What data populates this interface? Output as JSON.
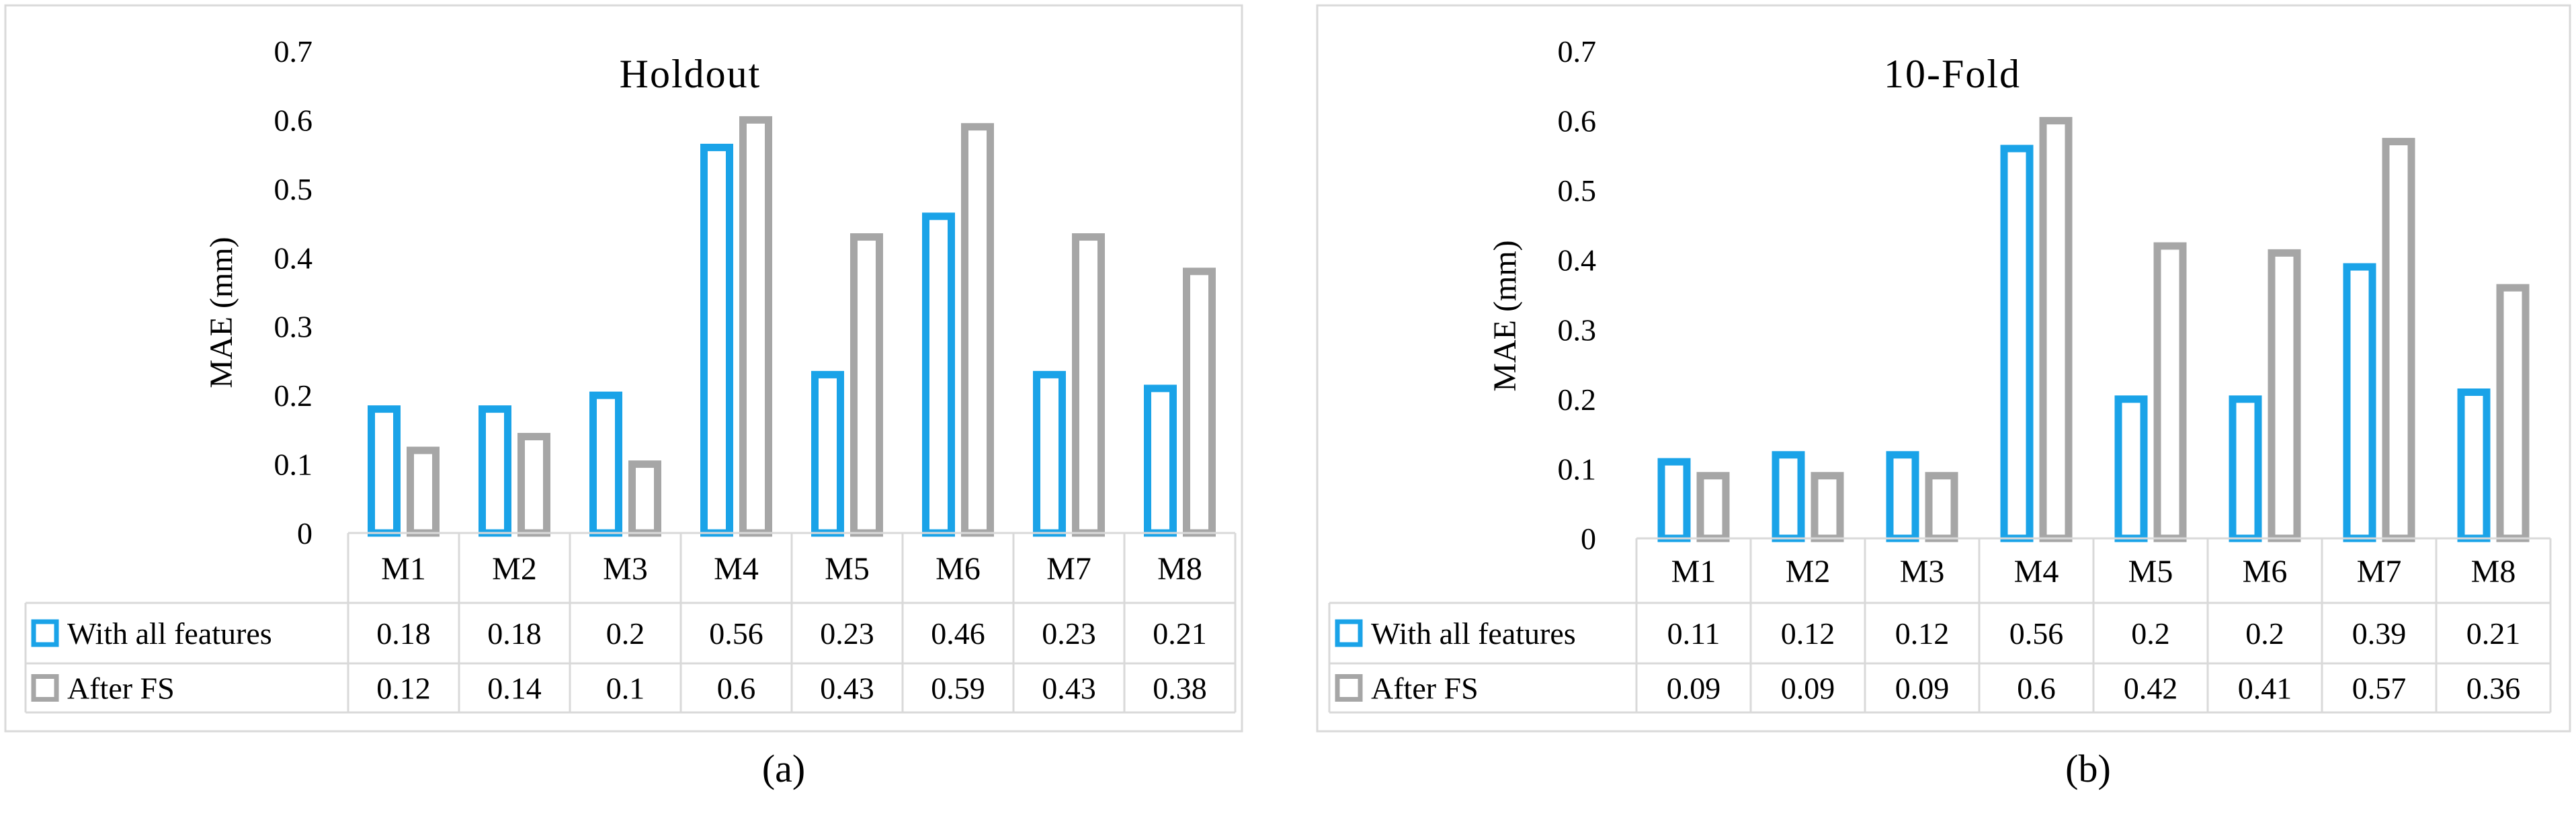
{
  "colors": {
    "series_a": "#1aa3e8",
    "series_b": "#a6a6a6",
    "grid": "#d9d9d9"
  },
  "chart_data": [
    {
      "type": "bar",
      "title": "Holdout",
      "panel_label": "(a)",
      "ylabel": "MAE (mm)",
      "xlabel": "",
      "ylim": [
        0,
        0.7
      ],
      "yticks": [
        "0",
        "0.1",
        "0.2",
        "0.3",
        "0.4",
        "0.5",
        "0.6",
        "0.7"
      ],
      "categories": [
        "M1",
        "M2",
        "M3",
        "M4",
        "M5",
        "M6",
        "M7",
        "M8"
      ],
      "series": [
        {
          "name": "With all features",
          "values": [
            0.18,
            0.18,
            0.2,
            0.56,
            0.23,
            0.46,
            0.23,
            0.21
          ],
          "labels": [
            "0.18",
            "0.18",
            "0.2",
            "0.56",
            "0.23",
            "0.46",
            "0.23",
            "0.21"
          ]
        },
        {
          "name": "After FS",
          "values": [
            0.12,
            0.14,
            0.1,
            0.6,
            0.43,
            0.59,
            0.43,
            0.38
          ],
          "labels": [
            "0.12",
            "0.14",
            "0.1",
            "0.6",
            "0.43",
            "0.59",
            "0.43",
            "0.38"
          ]
        }
      ],
      "legend": "data-table"
    },
    {
      "type": "bar",
      "title": "10-Fold",
      "panel_label": "(b)",
      "ylabel": "MAE (mm)",
      "xlabel": "",
      "ylim": [
        0,
        0.7
      ],
      "yticks": [
        "0",
        "0.1",
        "0.2",
        "0.3",
        "0.4",
        "0.5",
        "0.6",
        "0.7"
      ],
      "categories": [
        "M1",
        "M2",
        "M3",
        "M4",
        "M5",
        "M6",
        "M7",
        "M8"
      ],
      "series": [
        {
          "name": "With all features",
          "values": [
            0.11,
            0.12,
            0.12,
            0.56,
            0.2,
            0.2,
            0.39,
            0.21
          ],
          "labels": [
            "0.11",
            "0.12",
            "0.12",
            "0.56",
            "0.2",
            "0.2",
            "0.39",
            "0.21"
          ]
        },
        {
          "name": "After FS",
          "values": [
            0.09,
            0.09,
            0.09,
            0.6,
            0.42,
            0.41,
            0.57,
            0.36
          ],
          "labels": [
            "0.09",
            "0.09",
            "0.09",
            "0.6",
            "0.42",
            "0.41",
            "0.57",
            "0.36"
          ]
        }
      ],
      "legend": "data-table"
    }
  ]
}
